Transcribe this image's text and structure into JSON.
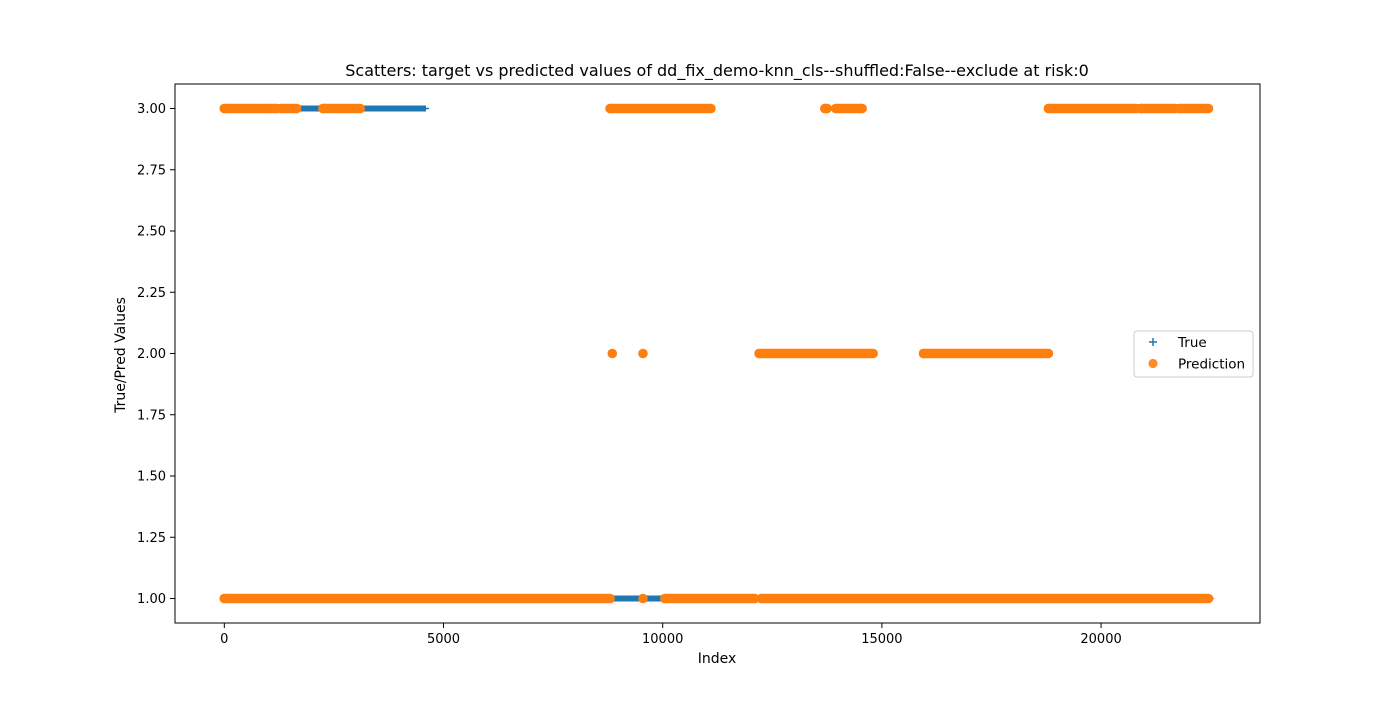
{
  "chart_data": {
    "type": "scatter",
    "title": "Scatters: target vs predicted values of dd_fix_demo-knn_cls--shuffled:False--exclude at risk:0",
    "xlabel": "Index",
    "ylabel": "True/Pred Values",
    "xlim": [
      -1125,
      23625
    ],
    "ylim": [
      0.9,
      3.1
    ],
    "xticks": [
      0,
      5000,
      10000,
      15000,
      20000
    ],
    "xtick_labels": [
      "0",
      "5000",
      "10000",
      "15000",
      "20000"
    ],
    "yticks": [
      1.0,
      1.25,
      1.5,
      1.75,
      2.0,
      2.25,
      2.5,
      2.75,
      3.0
    ],
    "ytick_labels": [
      "1.00",
      "1.25",
      "1.50",
      "1.75",
      "2.00",
      "2.25",
      "2.50",
      "2.75",
      "3.00"
    ],
    "grid": false,
    "legend_position": "center-right",
    "series": [
      {
        "name": "True",
        "marker": "plus",
        "color": "#1f77b4",
        "segments": [
          {
            "y": 3,
            "x_start": 0,
            "x_end": 4600
          },
          {
            "y": 1,
            "x_start": 4600,
            "x_end": 22500
          }
        ]
      },
      {
        "name": "Prediction",
        "marker": "circle",
        "color": "#ff7f0e",
        "segments": [
          {
            "y": 3,
            "x_start": 0,
            "x_end": 850
          },
          {
            "y": 3,
            "x_start": 900,
            "x_end": 1200
          },
          {
            "y": 3,
            "x_start": 1300,
            "x_end": 1650
          },
          {
            "y": 3,
            "x_start": 2250,
            "x_end": 3100
          },
          {
            "y": 3,
            "x_start": 8800,
            "x_end": 11100
          },
          {
            "y": 3,
            "x_start": 13700,
            "x_end": 13750
          },
          {
            "y": 3,
            "x_start": 13950,
            "x_end": 14450
          },
          {
            "y": 3,
            "x_start": 14500,
            "x_end": 14550
          },
          {
            "y": 3,
            "x_start": 18800,
            "x_end": 20800
          },
          {
            "y": 3,
            "x_start": 20900,
            "x_end": 21700
          },
          {
            "y": 3,
            "x_start": 21800,
            "x_end": 22450
          },
          {
            "y": 2,
            "x_start": 8850,
            "x_end": 8850
          },
          {
            "y": 2,
            "x_start": 9550,
            "x_end": 9550
          },
          {
            "y": 2,
            "x_start": 12200,
            "x_end": 14800
          },
          {
            "y": 2,
            "x_start": 15950,
            "x_end": 18800
          },
          {
            "y": 1,
            "x_start": 0,
            "x_end": 8800
          },
          {
            "y": 1,
            "x_start": 9550,
            "x_end": 9550
          },
          {
            "y": 1,
            "x_start": 10050,
            "x_end": 12100
          },
          {
            "y": 1,
            "x_start": 12250,
            "x_end": 22450
          }
        ]
      }
    ]
  }
}
